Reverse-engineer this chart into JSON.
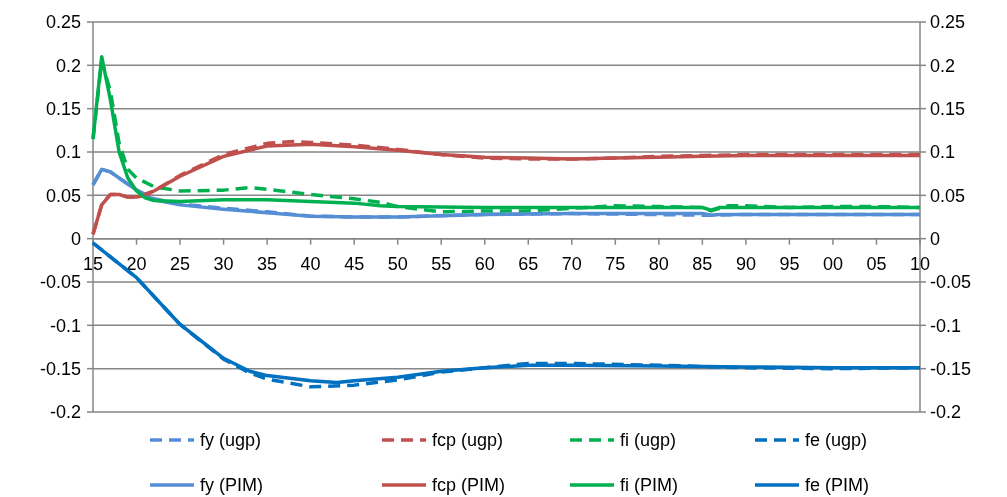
{
  "chart_data": {
    "type": "line",
    "xlim": [
      1915,
      2010
    ],
    "xticks": [
      {
        "value": 1915,
        "label": "15"
      },
      {
        "value": 1920,
        "label": "20"
      },
      {
        "value": 1925,
        "label": "25"
      },
      {
        "value": 1930,
        "label": "30"
      },
      {
        "value": 1935,
        "label": "35"
      },
      {
        "value": 1940,
        "label": "40"
      },
      {
        "value": 1945,
        "label": "45"
      },
      {
        "value": 1950,
        "label": "50"
      },
      {
        "value": 1955,
        "label": "55"
      },
      {
        "value": 1960,
        "label": "60"
      },
      {
        "value": 1965,
        "label": "65"
      },
      {
        "value": 1970,
        "label": "70"
      },
      {
        "value": 1975,
        "label": "75"
      },
      {
        "value": 1980,
        "label": "80"
      },
      {
        "value": 1985,
        "label": "85"
      },
      {
        "value": 1990,
        "label": "90"
      },
      {
        "value": 1995,
        "label": "95"
      },
      {
        "value": 2000,
        "label": "00"
      },
      {
        "value": 2005,
        "label": "05"
      },
      {
        "value": 2010,
        "label": "10"
      }
    ],
    "ylim": [
      -0.2,
      0.25
    ],
    "yticks": [
      -0.2,
      -0.15,
      -0.1,
      -0.05,
      0,
      0.05,
      0.1,
      0.15,
      0.2,
      0.25
    ],
    "y2lim": [
      -0.2,
      0.25
    ],
    "y2ticks": [
      -0.2,
      -0.15,
      -0.1,
      -0.05,
      0,
      0.05,
      0.1,
      0.15,
      0.2,
      0.25
    ],
    "grid": "y",
    "legend": "bottom",
    "marker": "none",
    "series": [
      {
        "name": "fy (ugp)",
        "color": "#558ed5",
        "line_style": "dashed",
        "x": [
          1915,
          1916,
          1917,
          1918,
          1920,
          1922,
          1925,
          1930,
          1935,
          1940,
          1945,
          1950,
          1960,
          1970,
          1986,
          1990,
          2000,
          2010
        ],
        "values": [
          0.062,
          0.08,
          0.077,
          0.07,
          0.056,
          0.046,
          0.04,
          0.035,
          0.031,
          0.026,
          0.025,
          0.025,
          0.028,
          0.029,
          0.027,
          0.028,
          0.028,
          0.028
        ]
      },
      {
        "name": "fcp (ugp)",
        "color": "#c0504d",
        "line_style": "dashed",
        "x": [
          1915,
          1916,
          1917,
          1918,
          1919,
          1920,
          1922,
          1925,
          1930,
          1935,
          1938,
          1940,
          1945,
          1950,
          1955,
          1960,
          1965,
          1970,
          1975,
          1980,
          1985,
          1990,
          2000,
          2010
        ],
        "values": [
          0.005,
          0.039,
          0.051,
          0.051,
          0.048,
          0.048,
          0.055,
          0.073,
          0.097,
          0.11,
          0.112,
          0.111,
          0.108,
          0.103,
          0.097,
          0.093,
          0.092,
          0.092,
          0.093,
          0.095,
          0.096,
          0.097,
          0.097,
          0.097
        ]
      },
      {
        "name": "fi (ugp)",
        "color": "#00b050",
        "line_style": "dashed",
        "x": [
          1915,
          1916,
          1917,
          1918,
          1919,
          1920,
          1922,
          1925,
          1930,
          1933,
          1935,
          1940,
          1945,
          1948,
          1950,
          1955,
          1960,
          1965,
          1970,
          1975,
          1980,
          1985,
          1986,
          1988,
          1990,
          1995,
          2000,
          2005,
          2010
        ],
        "values": [
          0.115,
          0.205,
          0.17,
          0.11,
          0.08,
          0.07,
          0.06,
          0.055,
          0.056,
          0.059,
          0.057,
          0.051,
          0.046,
          0.042,
          0.037,
          0.031,
          0.032,
          0.032,
          0.035,
          0.038,
          0.037,
          0.036,
          0.032,
          0.038,
          0.038,
          0.036,
          0.037,
          0.037,
          0.036
        ]
      },
      {
        "name": "fe (ugp)",
        "color": "#0070c0",
        "line_style": "dashed",
        "x": [
          1915,
          1920,
          1925,
          1930,
          1933,
          1935,
          1940,
          1945,
          1950,
          1955,
          1960,
          1965,
          1970,
          1980,
          1990,
          2000,
          2010
        ],
        "values": [
          -0.005,
          -0.045,
          -0.099,
          -0.139,
          -0.155,
          -0.162,
          -0.171,
          -0.169,
          -0.163,
          -0.154,
          -0.149,
          -0.144,
          -0.144,
          -0.146,
          -0.149,
          -0.15,
          -0.149
        ]
      },
      {
        "name": "fy (PIM)",
        "color": "#558ed5",
        "line_style": "solid",
        "x": [
          1915,
          1916,
          1917,
          1918,
          1920,
          1922,
          1925,
          1930,
          1935,
          1940,
          1945,
          1950,
          1960,
          1970,
          1985,
          1986,
          1987,
          1990,
          2000,
          2010
        ],
        "values": [
          0.062,
          0.08,
          0.077,
          0.07,
          0.056,
          0.045,
          0.039,
          0.034,
          0.03,
          0.026,
          0.025,
          0.025,
          0.028,
          0.029,
          0.029,
          0.027,
          0.028,
          0.028,
          0.028,
          0.028
        ]
      },
      {
        "name": "fcp (PIM)",
        "color": "#c0504d",
        "line_style": "solid",
        "x": [
          1915,
          1916,
          1917,
          1918,
          1919,
          1920,
          1921,
          1922,
          1925,
          1930,
          1935,
          1940,
          1945,
          1950,
          1955,
          1960,
          1965,
          1970,
          1975,
          1980,
          1985,
          1990,
          2000,
          2010
        ],
        "values": [
          0.005,
          0.039,
          0.051,
          0.051,
          0.048,
          0.048,
          0.05,
          0.055,
          0.072,
          0.095,
          0.107,
          0.109,
          0.106,
          0.102,
          0.097,
          0.094,
          0.093,
          0.092,
          0.093,
          0.094,
          0.095,
          0.096,
          0.096,
          0.096
        ]
      },
      {
        "name": "fi (PIM)",
        "color": "#00b050",
        "line_style": "solid",
        "x": [
          1915,
          1916,
          1917,
          1918,
          1919,
          1920,
          1921,
          1922,
          1925,
          1930,
          1935,
          1940,
          1945,
          1948,
          1950,
          1960,
          1970,
          1980,
          1985,
          1986,
          1987,
          1990,
          2000,
          2010
        ],
        "values": [
          0.115,
          0.21,
          0.16,
          0.1,
          0.07,
          0.055,
          0.047,
          0.044,
          0.043,
          0.045,
          0.045,
          0.043,
          0.041,
          0.038,
          0.037,
          0.036,
          0.036,
          0.036,
          0.036,
          0.033,
          0.036,
          0.036,
          0.036,
          0.036
        ]
      },
      {
        "name": "fe (PIM)",
        "color": "#0070c0",
        "line_style": "solid",
        "x": [
          1915,
          1920,
          1925,
          1930,
          1933,
          1935,
          1940,
          1943,
          1945,
          1950,
          1955,
          1960,
          1965,
          1970,
          1980,
          1990,
          2000,
          2010
        ],
        "values": [
          -0.005,
          -0.045,
          -0.099,
          -0.138,
          -0.153,
          -0.158,
          -0.164,
          -0.166,
          -0.164,
          -0.16,
          -0.153,
          -0.149,
          -0.146,
          -0.146,
          -0.147,
          -0.148,
          -0.149,
          -0.149
        ]
      }
    ]
  }
}
